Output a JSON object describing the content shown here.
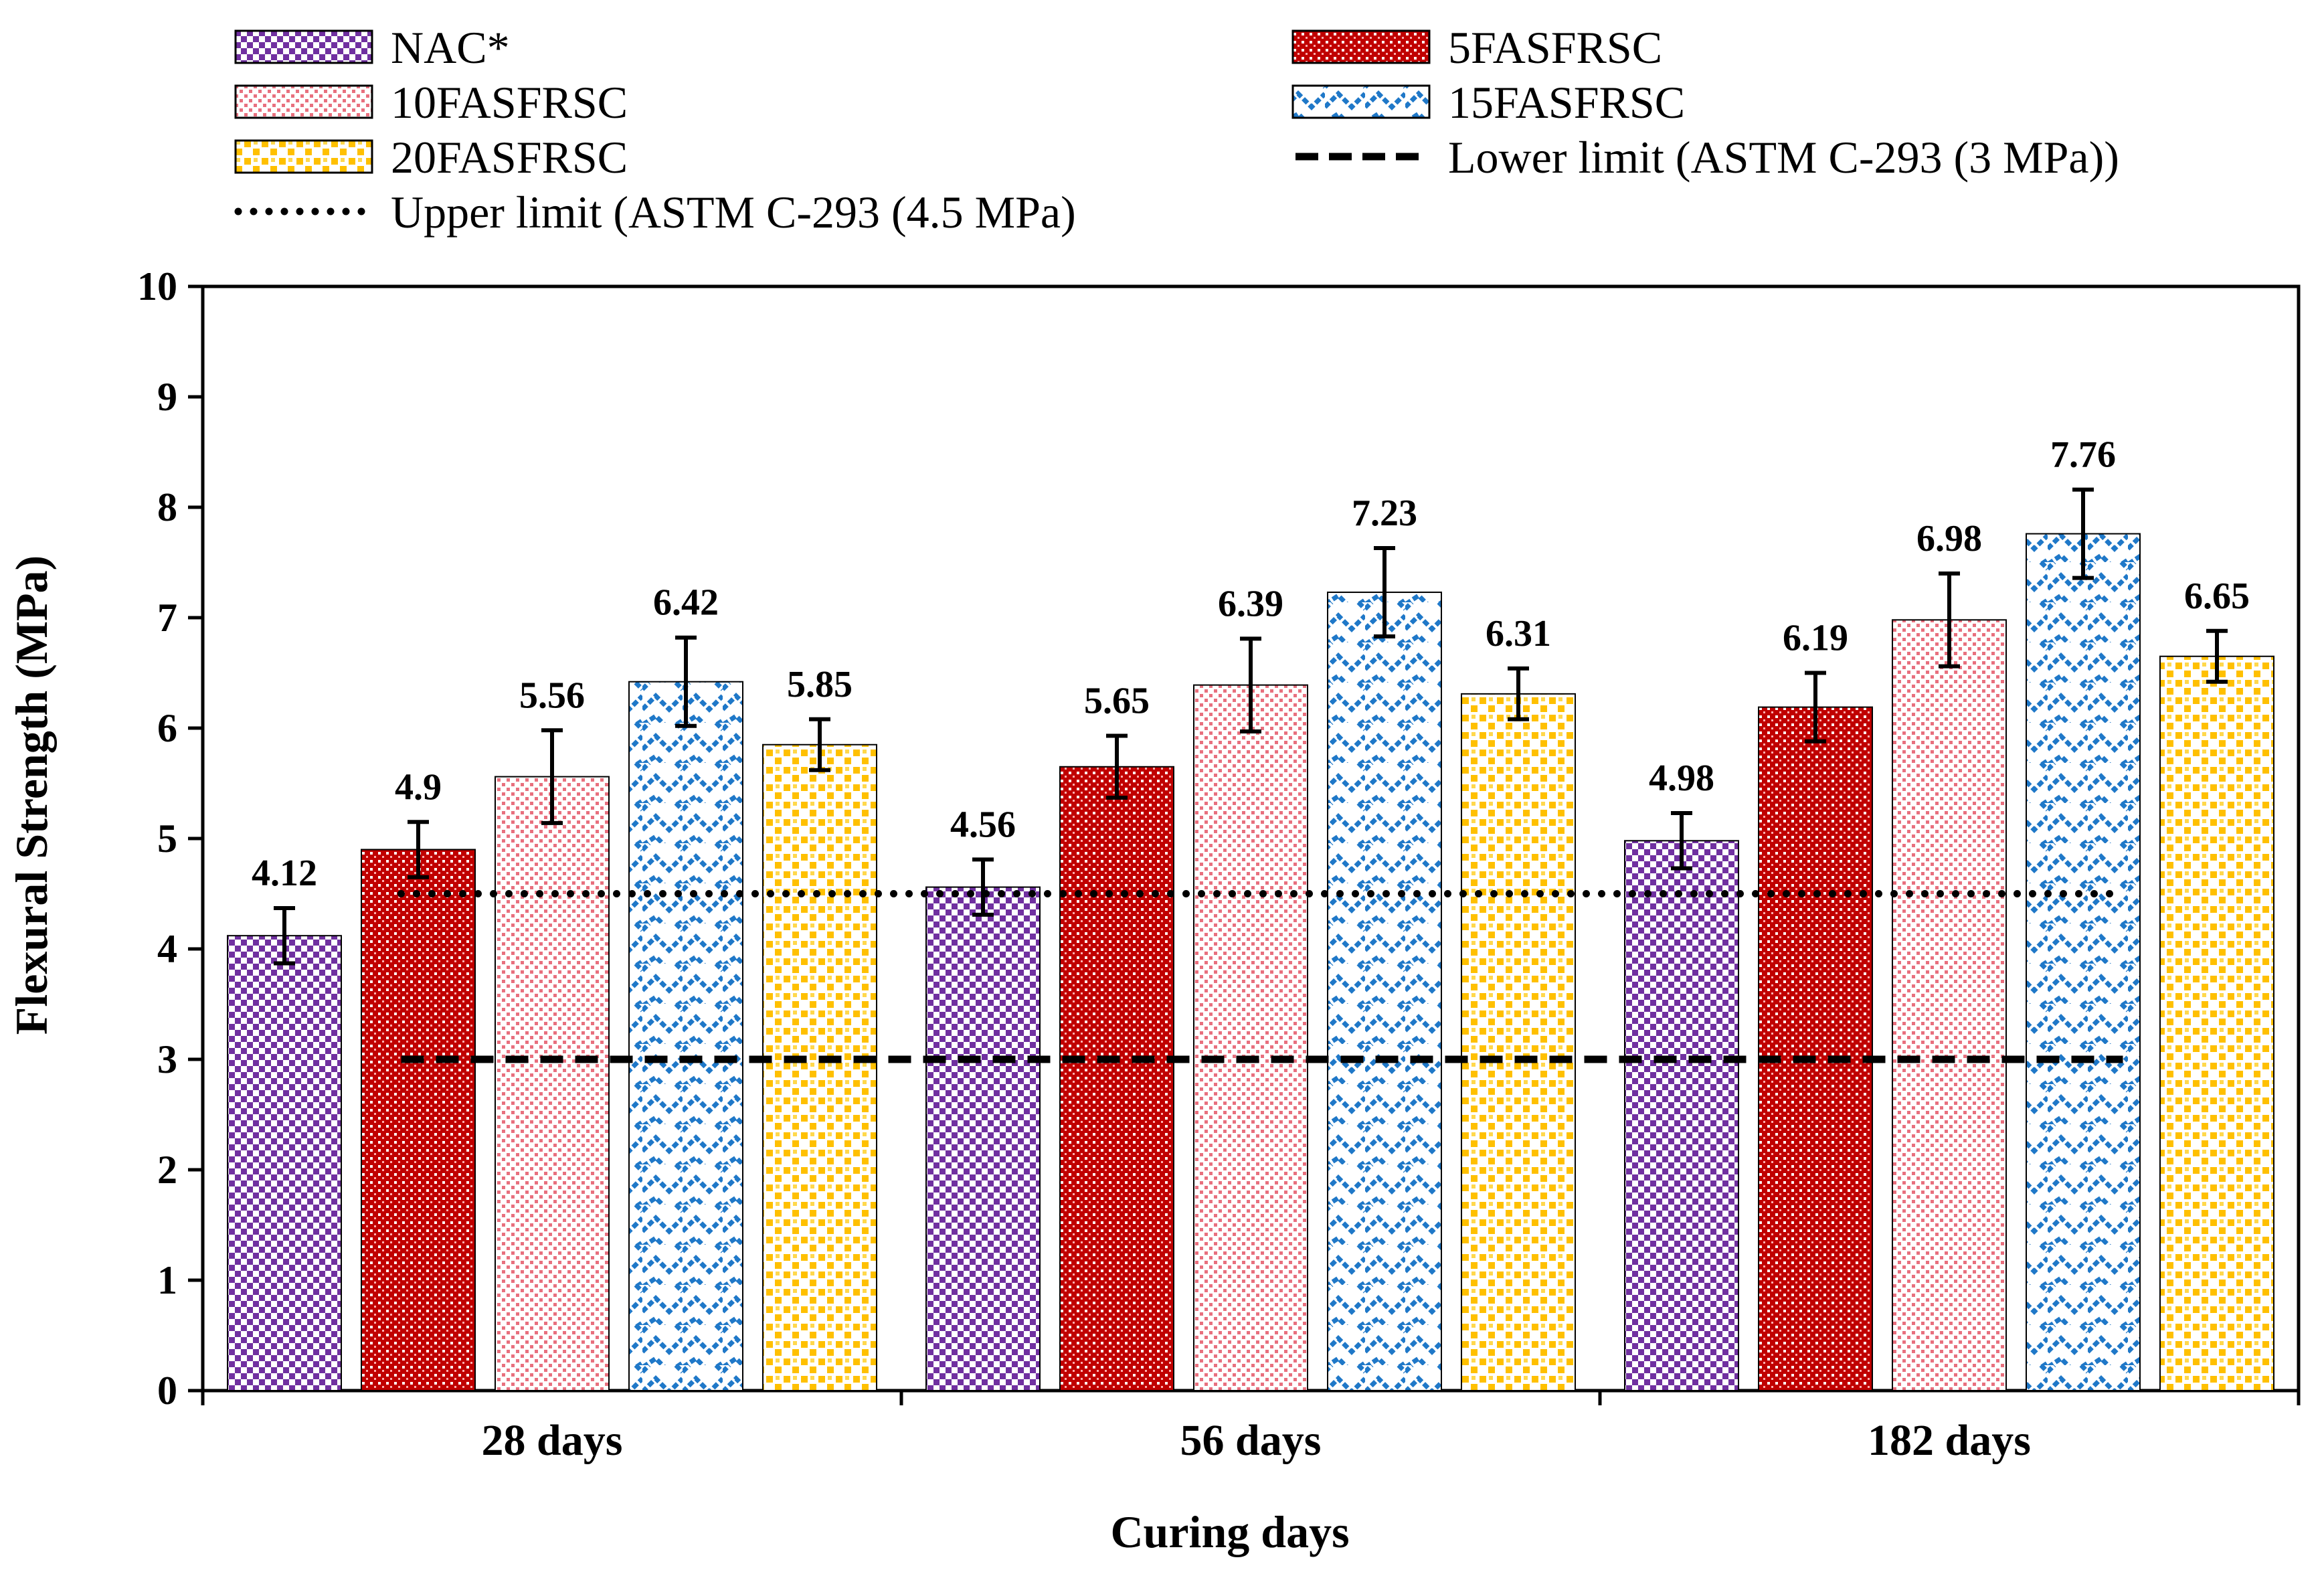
{
  "chart_data": {
    "type": "bar",
    "title": "",
    "xlabel": "Curing days",
    "ylabel": "Flexural Strength (MPa)",
    "ylim": [
      0,
      10
    ],
    "yticks": [
      "0",
      "1",
      "2",
      "3",
      "4",
      "5",
      "6",
      "7",
      "8",
      "9",
      "10"
    ],
    "categories": [
      "28 days",
      "56 days",
      "182 days"
    ],
    "series": [
      {
        "name": "NAC*",
        "values": [
          4.12,
          4.56,
          4.98
        ],
        "value_labels": [
          "4.12",
          "4.56",
          "4.98"
        ],
        "errors": [
          0.25,
          0.25,
          0.25
        ],
        "color": "#7030a0",
        "pattern": "checker"
      },
      {
        "name": "5FASFRSC",
        "values": [
          4.9,
          5.65,
          6.19
        ],
        "value_labels": [
          "4.9",
          "5.65",
          "6.19"
        ],
        "errors": [
          0.25,
          0.28,
          0.31
        ],
        "color": "#c00000",
        "pattern": "dense-dots"
      },
      {
        "name": "10FASFRSC",
        "values": [
          5.56,
          6.39,
          6.98
        ],
        "value_labels": [
          "5.56",
          "6.39",
          "6.98"
        ],
        "errors": [
          0.42,
          0.42,
          0.42
        ],
        "color": "#e8707e",
        "pattern": "sparse-dots"
      },
      {
        "name": "15FASFRSC",
        "values": [
          6.42,
          7.23,
          7.76
        ],
        "value_labels": [
          "6.42",
          "7.23",
          "7.76"
        ],
        "errors": [
          0.4,
          0.4,
          0.4
        ],
        "color": "#1f78c8",
        "pattern": "zigzag"
      },
      {
        "name": "20FASFRSC",
        "values": [
          5.85,
          6.31,
          6.65
        ],
        "value_labels": [
          "5.85",
          "6.31",
          "6.65"
        ],
        "errors": [
          0.23,
          0.23,
          0.23
        ],
        "color": "#ffc000",
        "pattern": "squares"
      }
    ],
    "reference_lines": [
      {
        "name": "Lower limit (ASTM C-293 (3 MPa))",
        "value": 3,
        "style": "dashed"
      },
      {
        "name": "Upper limit (ASTM C-293 (4.5 MPa)",
        "value": 4.5,
        "style": "dotted"
      }
    ],
    "legend_position": "top",
    "grid": false
  }
}
